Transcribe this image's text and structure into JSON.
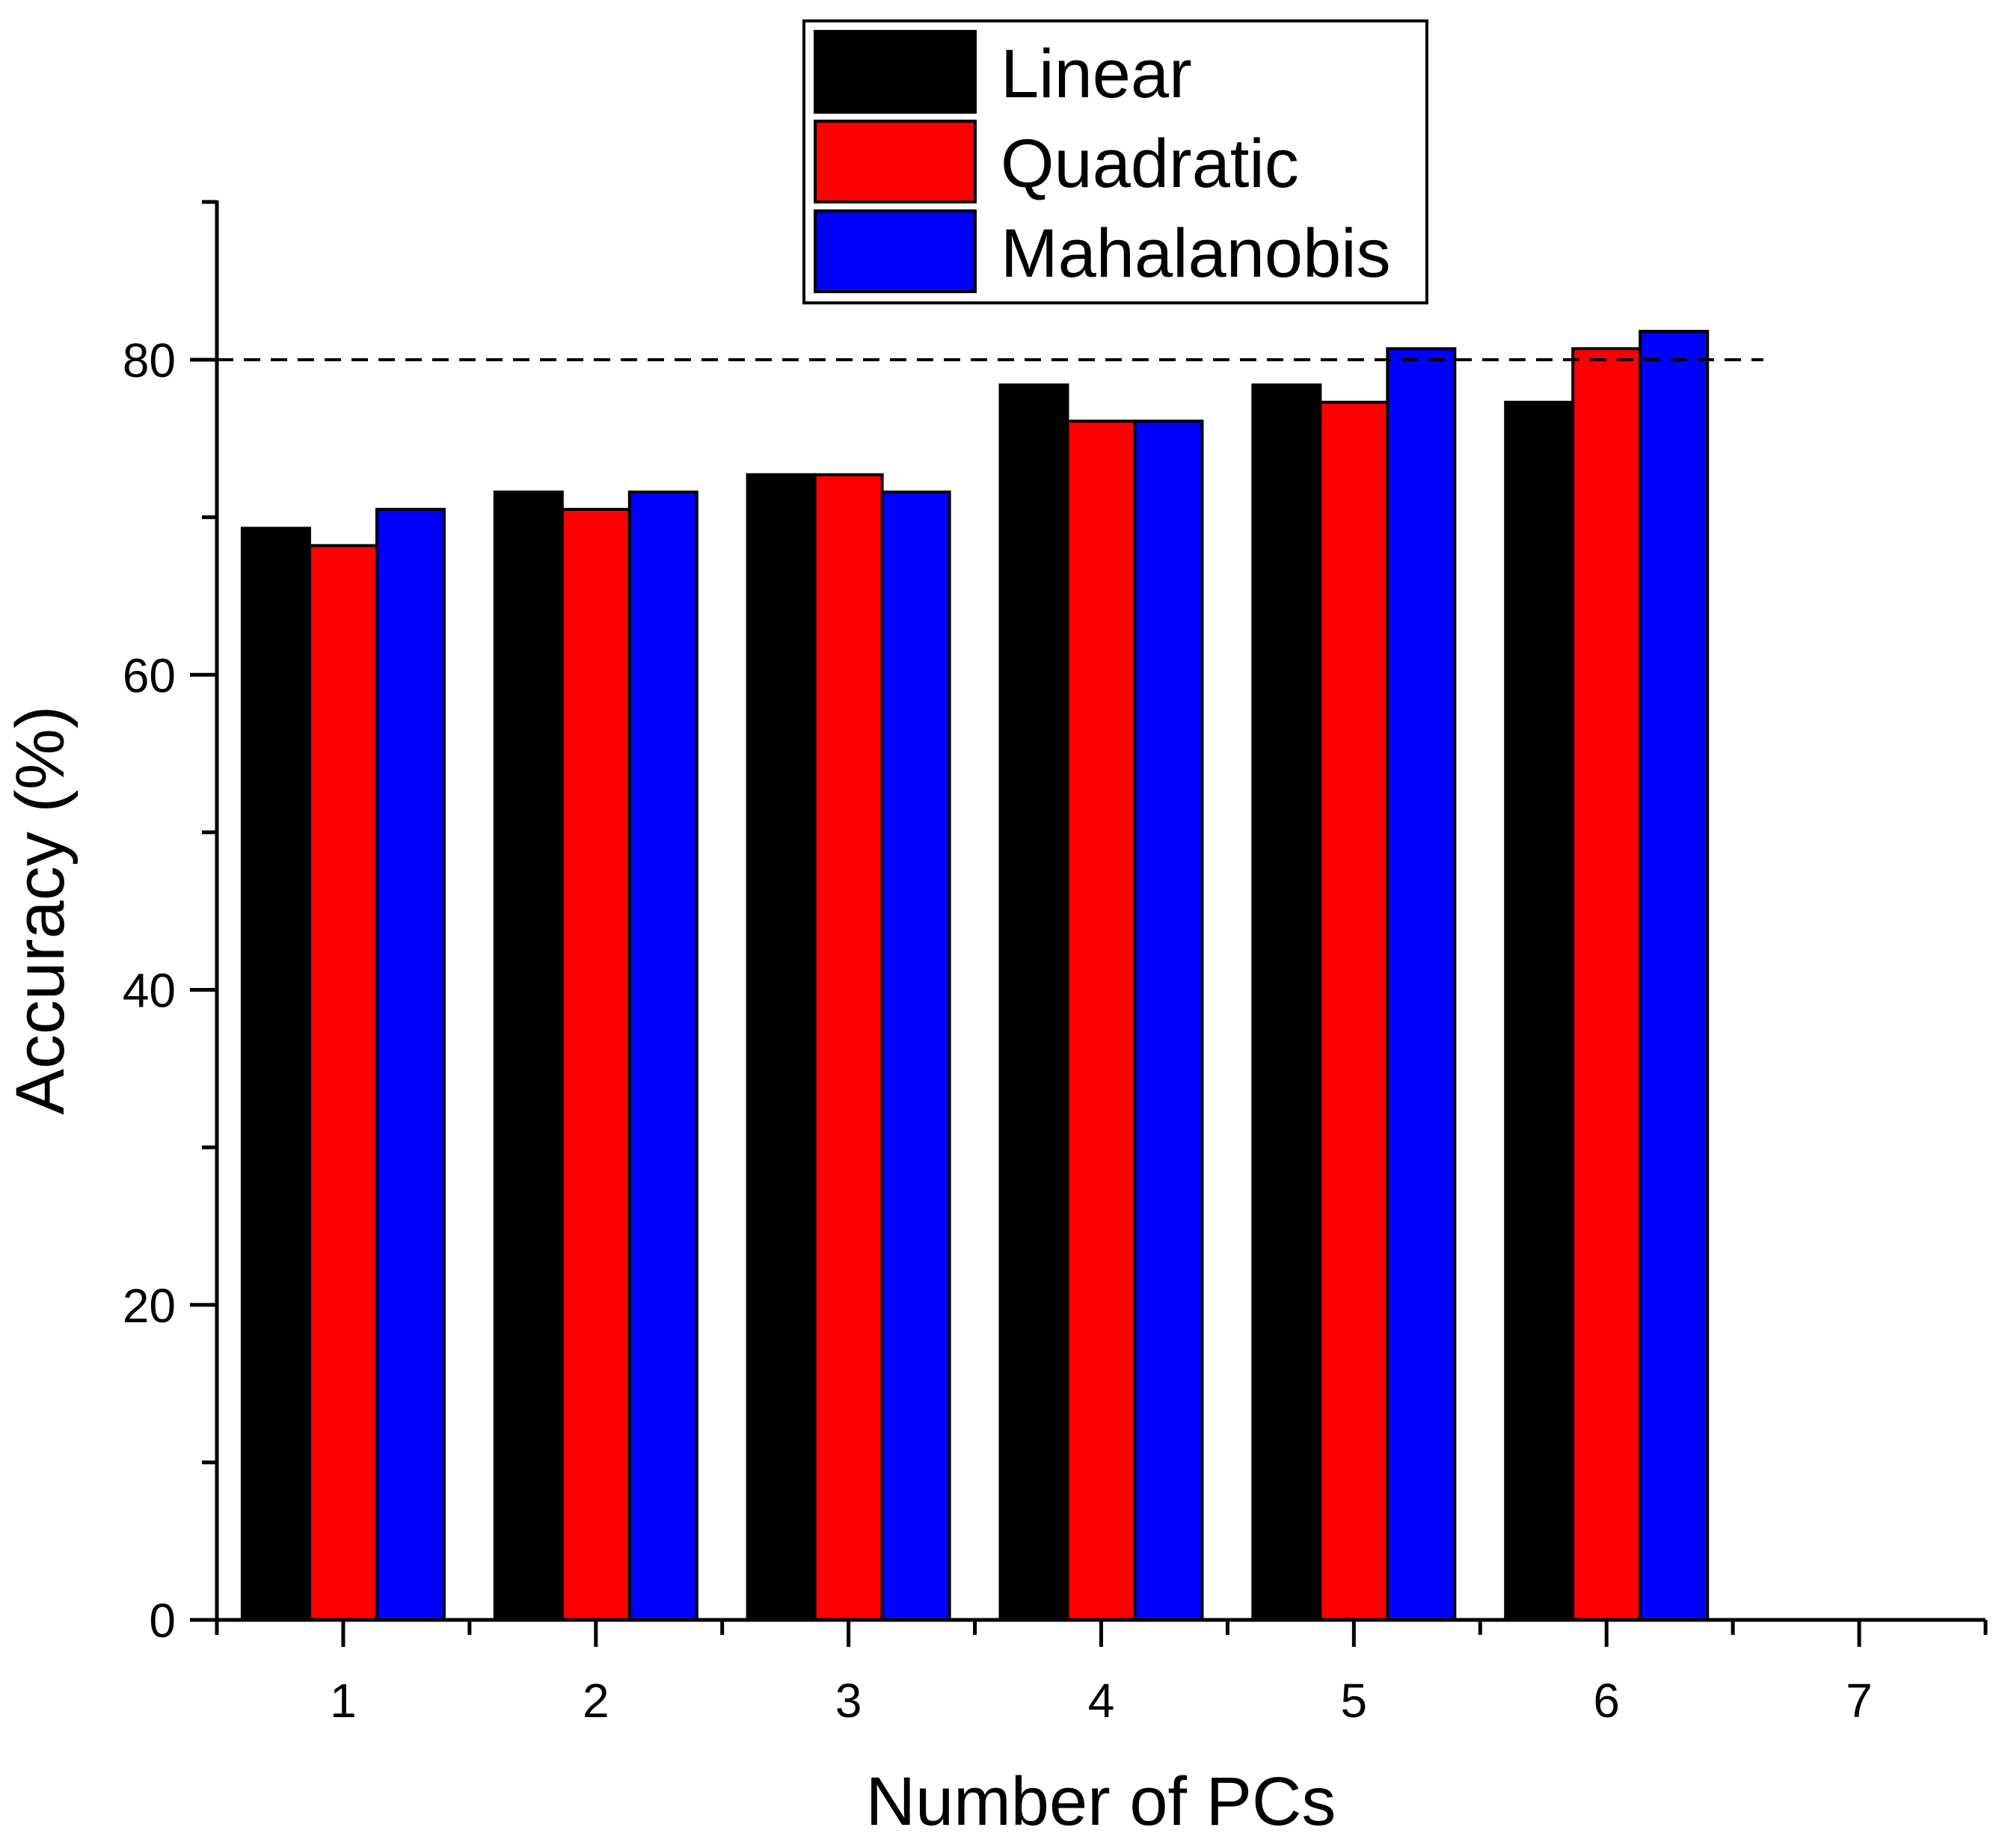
{
  "chart_data": {
    "type": "bar",
    "xlabel": "Number of PCs",
    "ylabel": "Accuracy (%)",
    "ylim": [
      0,
      90
    ],
    "xlim": [
      0.5,
      7.5
    ],
    "categories": [
      "1",
      "2",
      "3",
      "4",
      "5",
      "6"
    ],
    "x_ticks": [
      "1",
      "2",
      "3",
      "4",
      "5",
      "6",
      "7"
    ],
    "y_ticks": [
      "0",
      "20",
      "40",
      "60",
      "80"
    ],
    "y_minor_step": 10,
    "reference_line": {
      "y": 80,
      "style": "dashed"
    },
    "legend": {
      "position": "top-center",
      "entries": [
        "Linear",
        "Quadratic",
        "Mahalanobis"
      ]
    },
    "series": [
      {
        "name": "Linear",
        "color": "#000000",
        "values": [
          69.3,
          71.6,
          72.7,
          78.4,
          78.4,
          77.3
        ]
      },
      {
        "name": "Quadratic",
        "color": "#ff0000",
        "values": [
          68.2,
          70.5,
          72.7,
          76.1,
          77.3,
          80.7
        ]
      },
      {
        "name": "Mahalanobis",
        "color": "#0000ff",
        "values": [
          70.5,
          71.6,
          71.6,
          76.1,
          80.7,
          81.8
        ]
      }
    ]
  }
}
